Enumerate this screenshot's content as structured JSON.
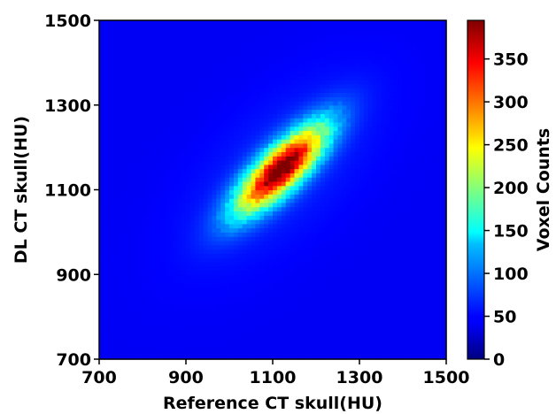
{
  "chart_data": {
    "type": "heatmap",
    "title": "",
    "xlabel": "Reference CT skull(HU)",
    "ylabel": "DL CT skull(HU)",
    "xlim": [
      700,
      1500
    ],
    "ylim": [
      700,
      1500
    ],
    "x_ticks": [
      "700",
      "900",
      "1100",
      "1300",
      "1500"
    ],
    "y_ticks": [
      "700",
      "900",
      "1100",
      "1300",
      "1500"
    ],
    "colorbar": {
      "label": "Voxel Counts",
      "range": [
        0,
        395
      ],
      "ticks": [
        "0",
        "50",
        "100",
        "150",
        "200",
        "250",
        "300",
        "350"
      ],
      "colormap": "jet"
    },
    "grid": false,
    "description_of_data": {
      "bin_size_hu": 10,
      "peak_center": [
        1120,
        1150
      ],
      "peak_value": 395,
      "principal_axis_slope": 1.0,
      "sigma_along_axis_hu": 95,
      "sigma_across_axis_hu": 32,
      "background_level": 45
    }
  }
}
